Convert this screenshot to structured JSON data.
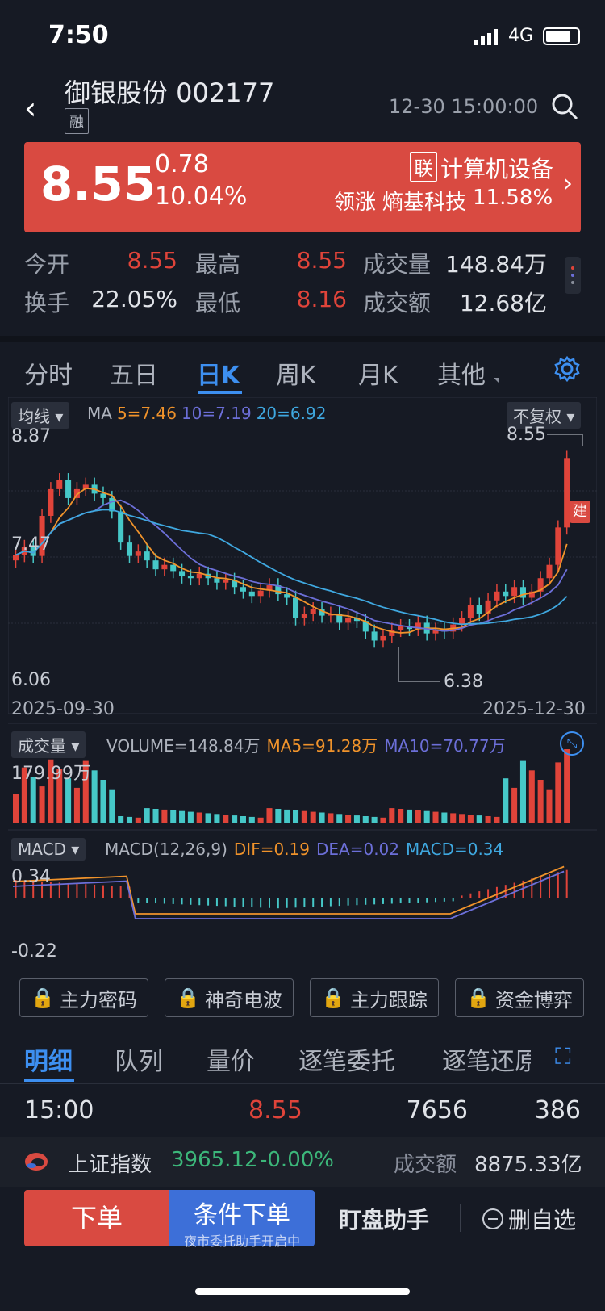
{
  "status": {
    "time": "7:50",
    "network": "4G"
  },
  "header": {
    "name": "御银股份 002177",
    "tag": "融",
    "datetime": "12-30 15:00:00"
  },
  "quote": {
    "price": "8.55",
    "change": "0.78",
    "pct": "10.04%",
    "sector_tag": "联",
    "sector": "计算机设备",
    "leader_label": "领涨",
    "leader": "熵基科技",
    "leader_pct": "11.58%"
  },
  "stats": {
    "open_l": "今开",
    "open": "8.55",
    "high_l": "最高",
    "high": "8.55",
    "vol_l": "成交量",
    "vol": "148.84万",
    "turn_l": "换手",
    "turn": "22.05%",
    "low_l": "最低",
    "low": "8.16",
    "amt_l": "成交额",
    "amt": "12.68亿"
  },
  "tabs": [
    "分时",
    "五日",
    "日K",
    "周K",
    "月K",
    "其他"
  ],
  "kchart": {
    "ma_chip": "均线",
    "ma_label": "MA",
    "ma5": "5=7.46",
    "ma10": "10=7.19",
    "ma20": "20=6.92",
    "adj": "不复权",
    "top": "8.87",
    "hi_mark": "8.55",
    "mid": "7.47",
    "bottom": "6.06",
    "low_mark": "6.38",
    "d1": "2025-09-30",
    "d2": "2025-12-30",
    "flag": "建"
  },
  "volume": {
    "chip": "成交量",
    "text": "VOLUME=148.84万",
    "ma5": "MA5=91.28万",
    "ma10": "MA10=70.77万",
    "top": "179.99万"
  },
  "macd": {
    "chip": "MACD",
    "text": "MACD(12,26,9)",
    "dif": "DIF=0.19",
    "dea": "DEA=0.02",
    "macd": "MACD=0.34",
    "top": "0.34",
    "bottom": "-0.22"
  },
  "locks": [
    "主力密码",
    "神奇电波",
    "主力跟踪",
    "资金博弈"
  ],
  "btabs": [
    "明细",
    "队列",
    "量价",
    "逐笔委托",
    "逐笔还原"
  ],
  "tick": {
    "time": "15:00",
    "price": "8.55",
    "vol": "7656",
    "num": "386"
  },
  "index": {
    "name": "上证指数",
    "value": "3965.12",
    "chg": "-0.00%",
    "amt_l": "成交额",
    "amt": "8875.33亿"
  },
  "actions": {
    "order": "下单",
    "cond": "条件下单",
    "cond_sub": "夜市委托助手开启中",
    "assist": "盯盘助手",
    "remove": "删自选"
  },
  "colors": {
    "up": "#e0443a",
    "down": "#46c8c8",
    "ma5": "#f0932b",
    "ma10": "#6c6fd8",
    "ma20": "#3fa8e0"
  },
  "chart_data": {
    "type": "candlestick",
    "x_range": [
      "2025-09-30",
      "2025-12-30"
    ],
    "ylim": [
      6.06,
      8.87
    ],
    "ma": {
      "MA5": 7.46,
      "MA10": 7.19,
      "MA20": 6.92
    },
    "high_label": 8.55,
    "low_label": 6.38
  }
}
